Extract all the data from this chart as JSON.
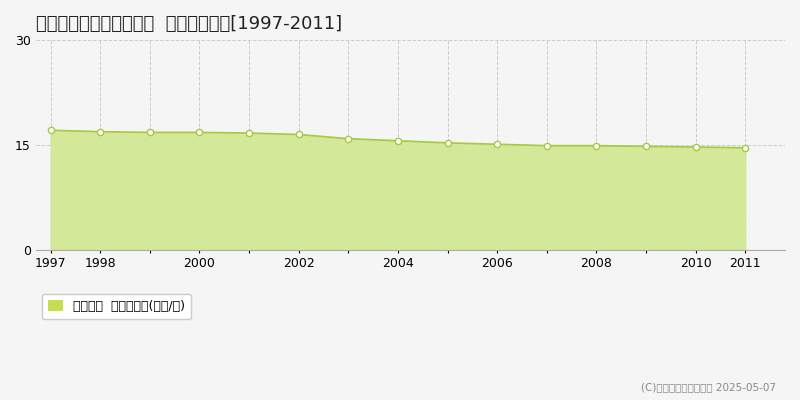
{
  "title": "員弁郡東員町六把野新田  基準地価推移[1997-2011]",
  "years": [
    1997,
    1998,
    1999,
    2000,
    2001,
    2002,
    2003,
    2004,
    2005,
    2006,
    2007,
    2008,
    2009,
    2010,
    2011
  ],
  "values": [
    17.1,
    16.9,
    16.8,
    16.8,
    16.7,
    16.5,
    15.9,
    15.6,
    15.3,
    15.1,
    14.9,
    14.9,
    14.8,
    14.7,
    14.6
  ],
  "line_color": "#a8c840",
  "fill_color": "#d4e89a",
  "marker_color": "#ffffff",
  "marker_edge_color": "#a8c840",
  "ylim": [
    0,
    30
  ],
  "yticks": [
    0,
    15,
    30
  ],
  "xticks_all": [
    1997,
    1998,
    1999,
    2000,
    2001,
    2002,
    2003,
    2004,
    2005,
    2006,
    2007,
    2008,
    2009,
    2010,
    2011
  ],
  "xticks_labeled": [
    1997,
    1998,
    2000,
    2002,
    2004,
    2006,
    2008,
    2010,
    2011
  ],
  "grid_color": "#cccccc",
  "background_color": "#f5f5f5",
  "plot_bg_color": "#f5f5f5",
  "legend_label": "基準地価  平均坪単価(万円/坪)",
  "legend_color": "#c8dc50",
  "copyright_text": "(C)土地価格ドットコム 2025-05-07",
  "title_fontsize": 13,
  "axis_fontsize": 9,
  "legend_fontsize": 9
}
